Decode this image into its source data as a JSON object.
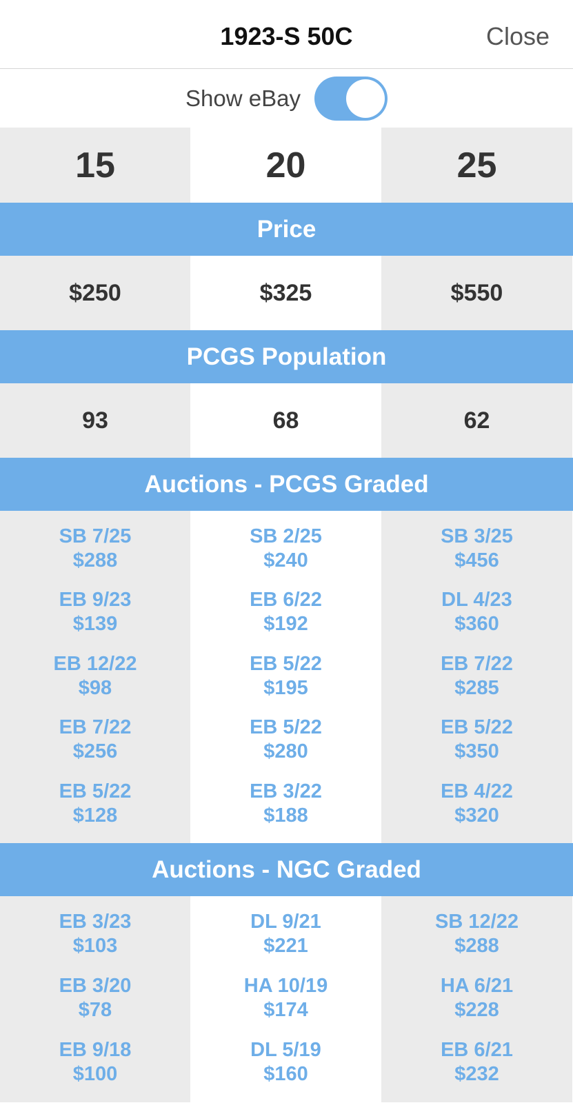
{
  "header": {
    "title": "1923-S 50C",
    "close": "Close"
  },
  "toggle": {
    "label": "Show eBay",
    "on": true
  },
  "grades": [
    15,
    20,
    25
  ],
  "sections": [
    {
      "title": "Price",
      "cells": [
        "$250",
        "$325",
        "$550"
      ]
    },
    {
      "title": "PCGS Population",
      "cells": [
        93,
        68,
        62
      ]
    },
    {
      "title": "Auctions - PCGS Graded",
      "columns": [
        [
          {
            "sale": "SB 7/25",
            "price": "$288"
          },
          {
            "sale": "EB 9/23",
            "price": "$139"
          },
          {
            "sale": "EB 12/22",
            "price": "$98"
          },
          {
            "sale": "EB 7/22",
            "price": "$256"
          },
          {
            "sale": "EB 5/22",
            "price": "$128"
          }
        ],
        [
          {
            "sale": "SB 2/25",
            "price": "$240"
          },
          {
            "sale": "EB 6/22",
            "price": "$192"
          },
          {
            "sale": "EB 5/22",
            "price": "$195"
          },
          {
            "sale": "EB 5/22",
            "price": "$280"
          },
          {
            "sale": "EB 3/22",
            "price": "$188"
          }
        ],
        [
          {
            "sale": "SB 3/25",
            "price": "$456"
          },
          {
            "sale": "DL 4/23",
            "price": "$360"
          },
          {
            "sale": "EB 7/22",
            "price": "$285"
          },
          {
            "sale": "EB 5/22",
            "price": "$350"
          },
          {
            "sale": "EB 4/22",
            "price": "$320"
          }
        ]
      ]
    },
    {
      "title": "Auctions - NGC Graded",
      "columns": [
        [
          {
            "sale": "EB 3/23",
            "price": "$103"
          },
          {
            "sale": "EB 3/20",
            "price": "$78"
          },
          {
            "sale": "EB 9/18",
            "price": "$100"
          }
        ],
        [
          {
            "sale": "DL 9/21",
            "price": "$221"
          },
          {
            "sale": "HA 10/19",
            "price": "$174"
          },
          {
            "sale": "DL 5/19",
            "price": "$160"
          }
        ],
        [
          {
            "sale": "SB 12/22",
            "price": "$288"
          },
          {
            "sale": "HA 6/21",
            "price": "$228"
          },
          {
            "sale": "EB 6/21",
            "price": "$232"
          }
        ]
      ]
    }
  ]
}
